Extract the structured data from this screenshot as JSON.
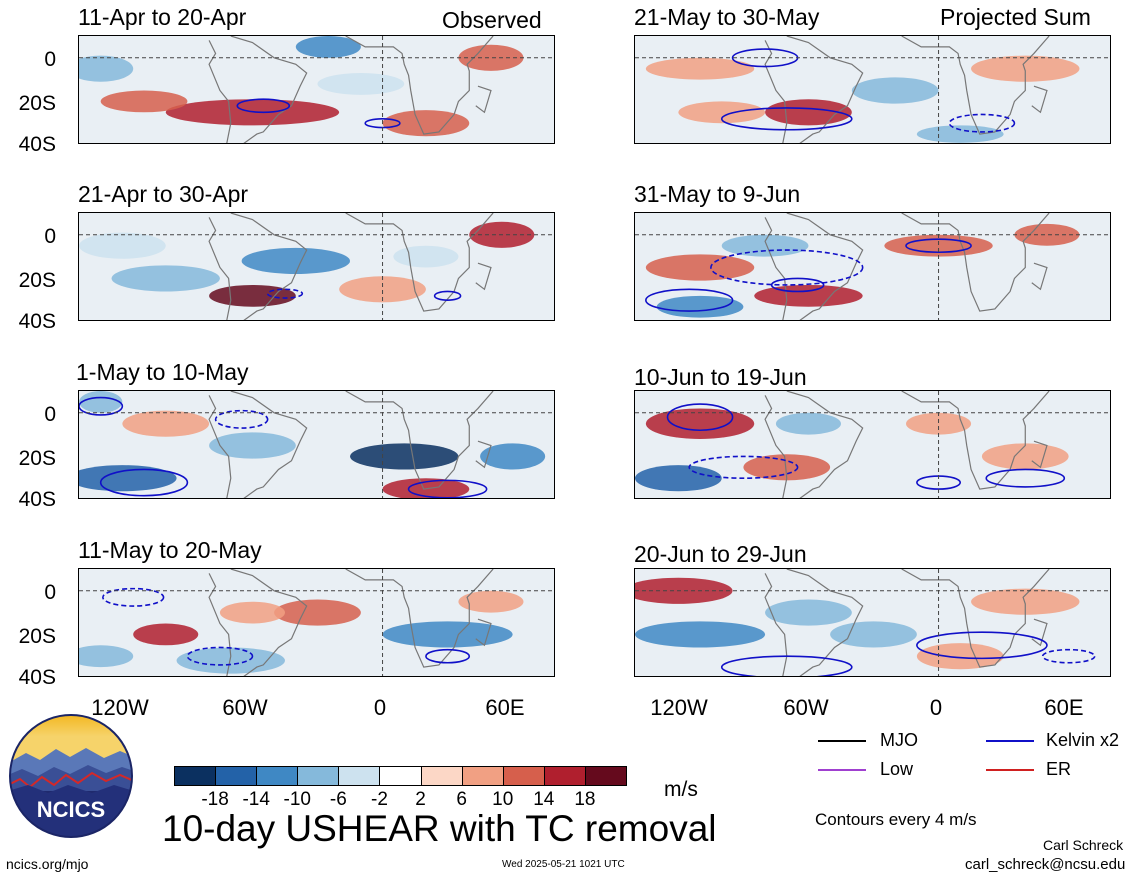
{
  "header": {
    "observed_label": "Observed",
    "projected_label": "Projected Sum"
  },
  "chart_data": {
    "type": "heatmap",
    "title": "10-day USHEAR with TC removal",
    "units": "m/s",
    "contour_note": "Contours every 4 m/s",
    "x_ticks": [
      "120W",
      "60W",
      "0",
      "60E"
    ],
    "y_ticks": [
      "0",
      "20S",
      "40S"
    ],
    "panels": [
      {
        "title": "11-Apr to 20-Apr",
        "group": "Observed"
      },
      {
        "title": "21-Apr to 30-Apr",
        "group": "Observed"
      },
      {
        "title": "1-May to 10-May",
        "group": "Observed"
      },
      {
        "title": "11-May to 20-May",
        "group": "Observed"
      },
      {
        "title": "21-May to 30-May",
        "group": "Projected Sum"
      },
      {
        "title": "31-May to 9-Jun",
        "group": "Projected Sum"
      },
      {
        "title": "10-Jun to 19-Jun",
        "group": "Projected Sum"
      },
      {
        "title": "20-Jun to 29-Jun",
        "group": "Projected Sum"
      }
    ],
    "colorbar": {
      "labels": [
        "-18",
        "-14",
        "-10",
        "-6",
        "-2",
        "2",
        "6",
        "10",
        "14",
        "18"
      ],
      "colors": [
        "#0b3060",
        "#2362a8",
        "#3f88c4",
        "#85b9db",
        "#cde2ef",
        "#ffffff",
        "#fcd7c6",
        "#f1a083",
        "#d65f4c",
        "#b01f2e",
        "#650a1d"
      ]
    },
    "legend": [
      {
        "label": "MJO",
        "color": "#000000"
      },
      {
        "label": "Kelvin x2",
        "color": "#1010c8"
      },
      {
        "label": "Low",
        "color": "#a040d0"
      },
      {
        "label": "ER",
        "color": "#d02020"
      }
    ]
  },
  "footer": {
    "left": "ncics.org/mjo",
    "center": "Wed 2025-05-21 1021 UTC",
    "author": "Carl Schreck",
    "email": "carl_schreck@ncsu.edu",
    "logo_text": "NCICS"
  }
}
